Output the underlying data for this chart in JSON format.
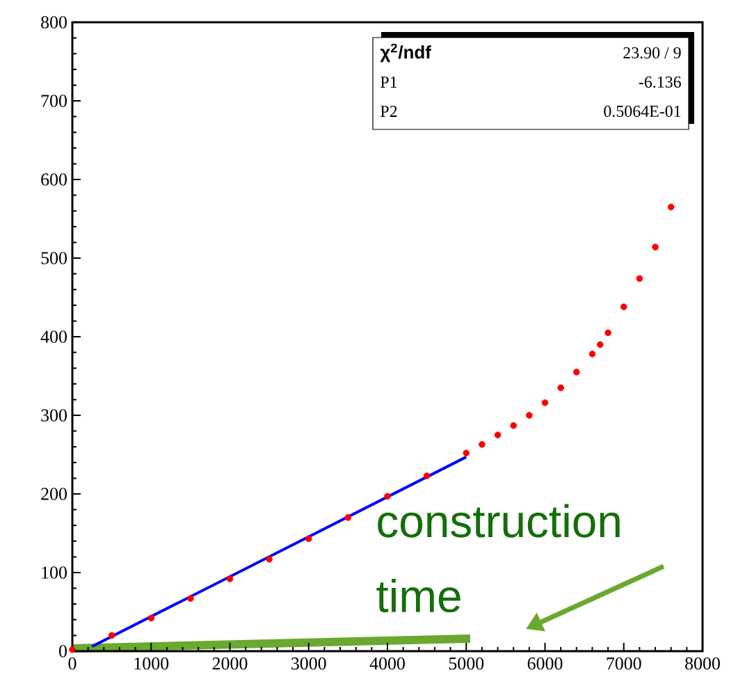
{
  "chart_data": {
    "type": "scatter",
    "x": [
      0,
      500,
      1000,
      1500,
      2000,
      2500,
      3000,
      3500,
      4000,
      4500,
      5000,
      5200,
      5400,
      5600,
      5800,
      6000,
      6200,
      6400,
      6600,
      6700,
      6800,
      7000,
      7200,
      7400,
      7600
    ],
    "series": [
      {
        "color": "#ff0000",
        "marker": "circle",
        "values": [
          2,
          20,
          42,
          67,
          92,
          117,
          143,
          170,
          197,
          223,
          252,
          263,
          275,
          287,
          300,
          316,
          335,
          355,
          378,
          390,
          405,
          438,
          474,
          514,
          565
        ]
      },
      {
        "type": "line",
        "color": "#0000ff",
        "marker": "none",
        "x": [
          250,
          5000
        ],
        "values": [
          6,
          247
        ]
      }
    ],
    "xlim": [
      0,
      8000
    ],
    "ylim": [
      0,
      800
    ],
    "xticks": [
      0,
      1000,
      2000,
      3000,
      4000,
      5000,
      6000,
      7000,
      8000
    ],
    "yticks": [
      0,
      100,
      200,
      300,
      400,
      500,
      600,
      700,
      800
    ],
    "grid": false,
    "annotations": [
      "χ$^{2}$/ndf",
      "23.90   /   9",
      "P1",
      "-6.136",
      "P2",
      "0.5064E-01",
      "construction time"
    ]
  }
}
